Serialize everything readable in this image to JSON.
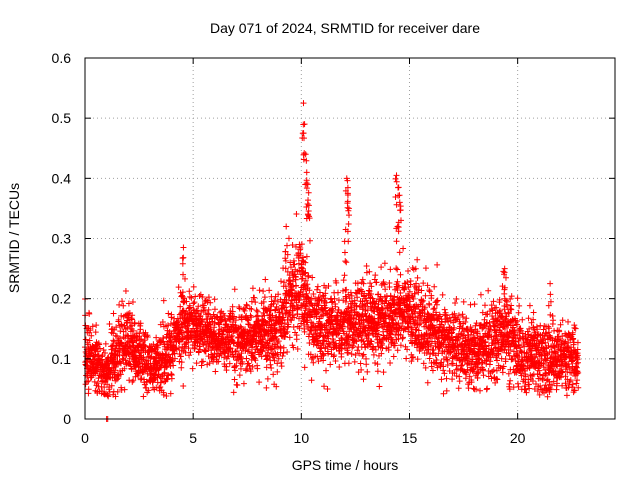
{
  "chart_data": {
    "type": "scatter",
    "title": "Day 071 of 2024, SRMTID for receiver dare",
    "xlabel": "GPS time / hours",
    "ylabel": "SRMTID / TECUs",
    "xlim": [
      0,
      24.5
    ],
    "ylim": [
      0,
      0.6
    ],
    "xticks": [
      0,
      5,
      10,
      15,
      20
    ],
    "xtick_labels": [
      "0",
      "5",
      "10",
      "15",
      "20"
    ],
    "yticks": [
      0,
      0.1,
      0.2,
      0.3,
      0.4,
      0.5,
      0.6
    ],
    "ytick_labels": [
      "0",
      "0.1",
      "0.2",
      "0.3",
      "0.4",
      "0.5",
      "0.6"
    ],
    "grid": true,
    "marker": "+",
    "series": [
      {
        "name": "SRMTID",
        "color": "#ff0000",
        "x_range": [
          0,
          22.8
        ],
        "sample_step_hours": 0.008,
        "baseline_profile": {
          "hours": [
            0,
            0.5,
            1.0,
            1.5,
            2.0,
            3.0,
            3.5,
            4.0,
            4.5,
            5.0,
            6.0,
            7.0,
            8.0,
            9.0,
            9.5,
            10.0,
            10.5,
            11.0,
            12.0,
            13.0,
            14.0,
            14.5,
            15.0,
            15.5,
            16.0,
            17.0,
            18.0,
            19.0,
            19.5,
            20.0,
            21.0,
            22.0,
            22.8
          ],
          "median": [
            0.11,
            0.095,
            0.07,
            0.11,
            0.125,
            0.085,
            0.095,
            0.125,
            0.155,
            0.155,
            0.135,
            0.13,
            0.135,
            0.15,
            0.2,
            0.215,
            0.16,
            0.15,
            0.155,
            0.165,
            0.17,
            0.175,
            0.18,
            0.16,
            0.15,
            0.125,
            0.115,
            0.135,
            0.15,
            0.12,
            0.1,
            0.1,
            0.1
          ],
          "spread": [
            0.06,
            0.05,
            0.04,
            0.06,
            0.06,
            0.04,
            0.045,
            0.05,
            0.055,
            0.05,
            0.05,
            0.05,
            0.055,
            0.06,
            0.07,
            0.075,
            0.065,
            0.06,
            0.06,
            0.065,
            0.07,
            0.07,
            0.065,
            0.065,
            0.06,
            0.055,
            0.055,
            0.06,
            0.065,
            0.06,
            0.055,
            0.05,
            0.05
          ]
        },
        "peaks": [
          {
            "x": 4.55,
            "y": 0.285
          },
          {
            "x": 10.1,
            "y": 0.525
          },
          {
            "x": 10.15,
            "y": 0.49
          },
          {
            "x": 10.2,
            "y": 0.44
          },
          {
            "x": 10.25,
            "y": 0.41
          },
          {
            "x": 10.3,
            "y": 0.39
          },
          {
            "x": 10.35,
            "y": 0.355
          },
          {
            "x": 12.1,
            "y": 0.4
          },
          {
            "x": 12.15,
            "y": 0.375
          },
          {
            "x": 12.2,
            "y": 0.35
          },
          {
            "x": 12.05,
            "y": 0.315
          },
          {
            "x": 14.4,
            "y": 0.405
          },
          {
            "x": 14.5,
            "y": 0.385
          },
          {
            "x": 14.55,
            "y": 0.36
          },
          {
            "x": 14.45,
            "y": 0.32
          },
          {
            "x": 9.3,
            "y": 0.32
          },
          {
            "x": 19.4,
            "y": 0.25
          },
          {
            "x": 21.5,
            "y": 0.225
          },
          {
            "x": 1.0,
            "y": 0.0
          },
          {
            "x": 1.05,
            "y": 0.0
          }
        ]
      }
    ]
  }
}
